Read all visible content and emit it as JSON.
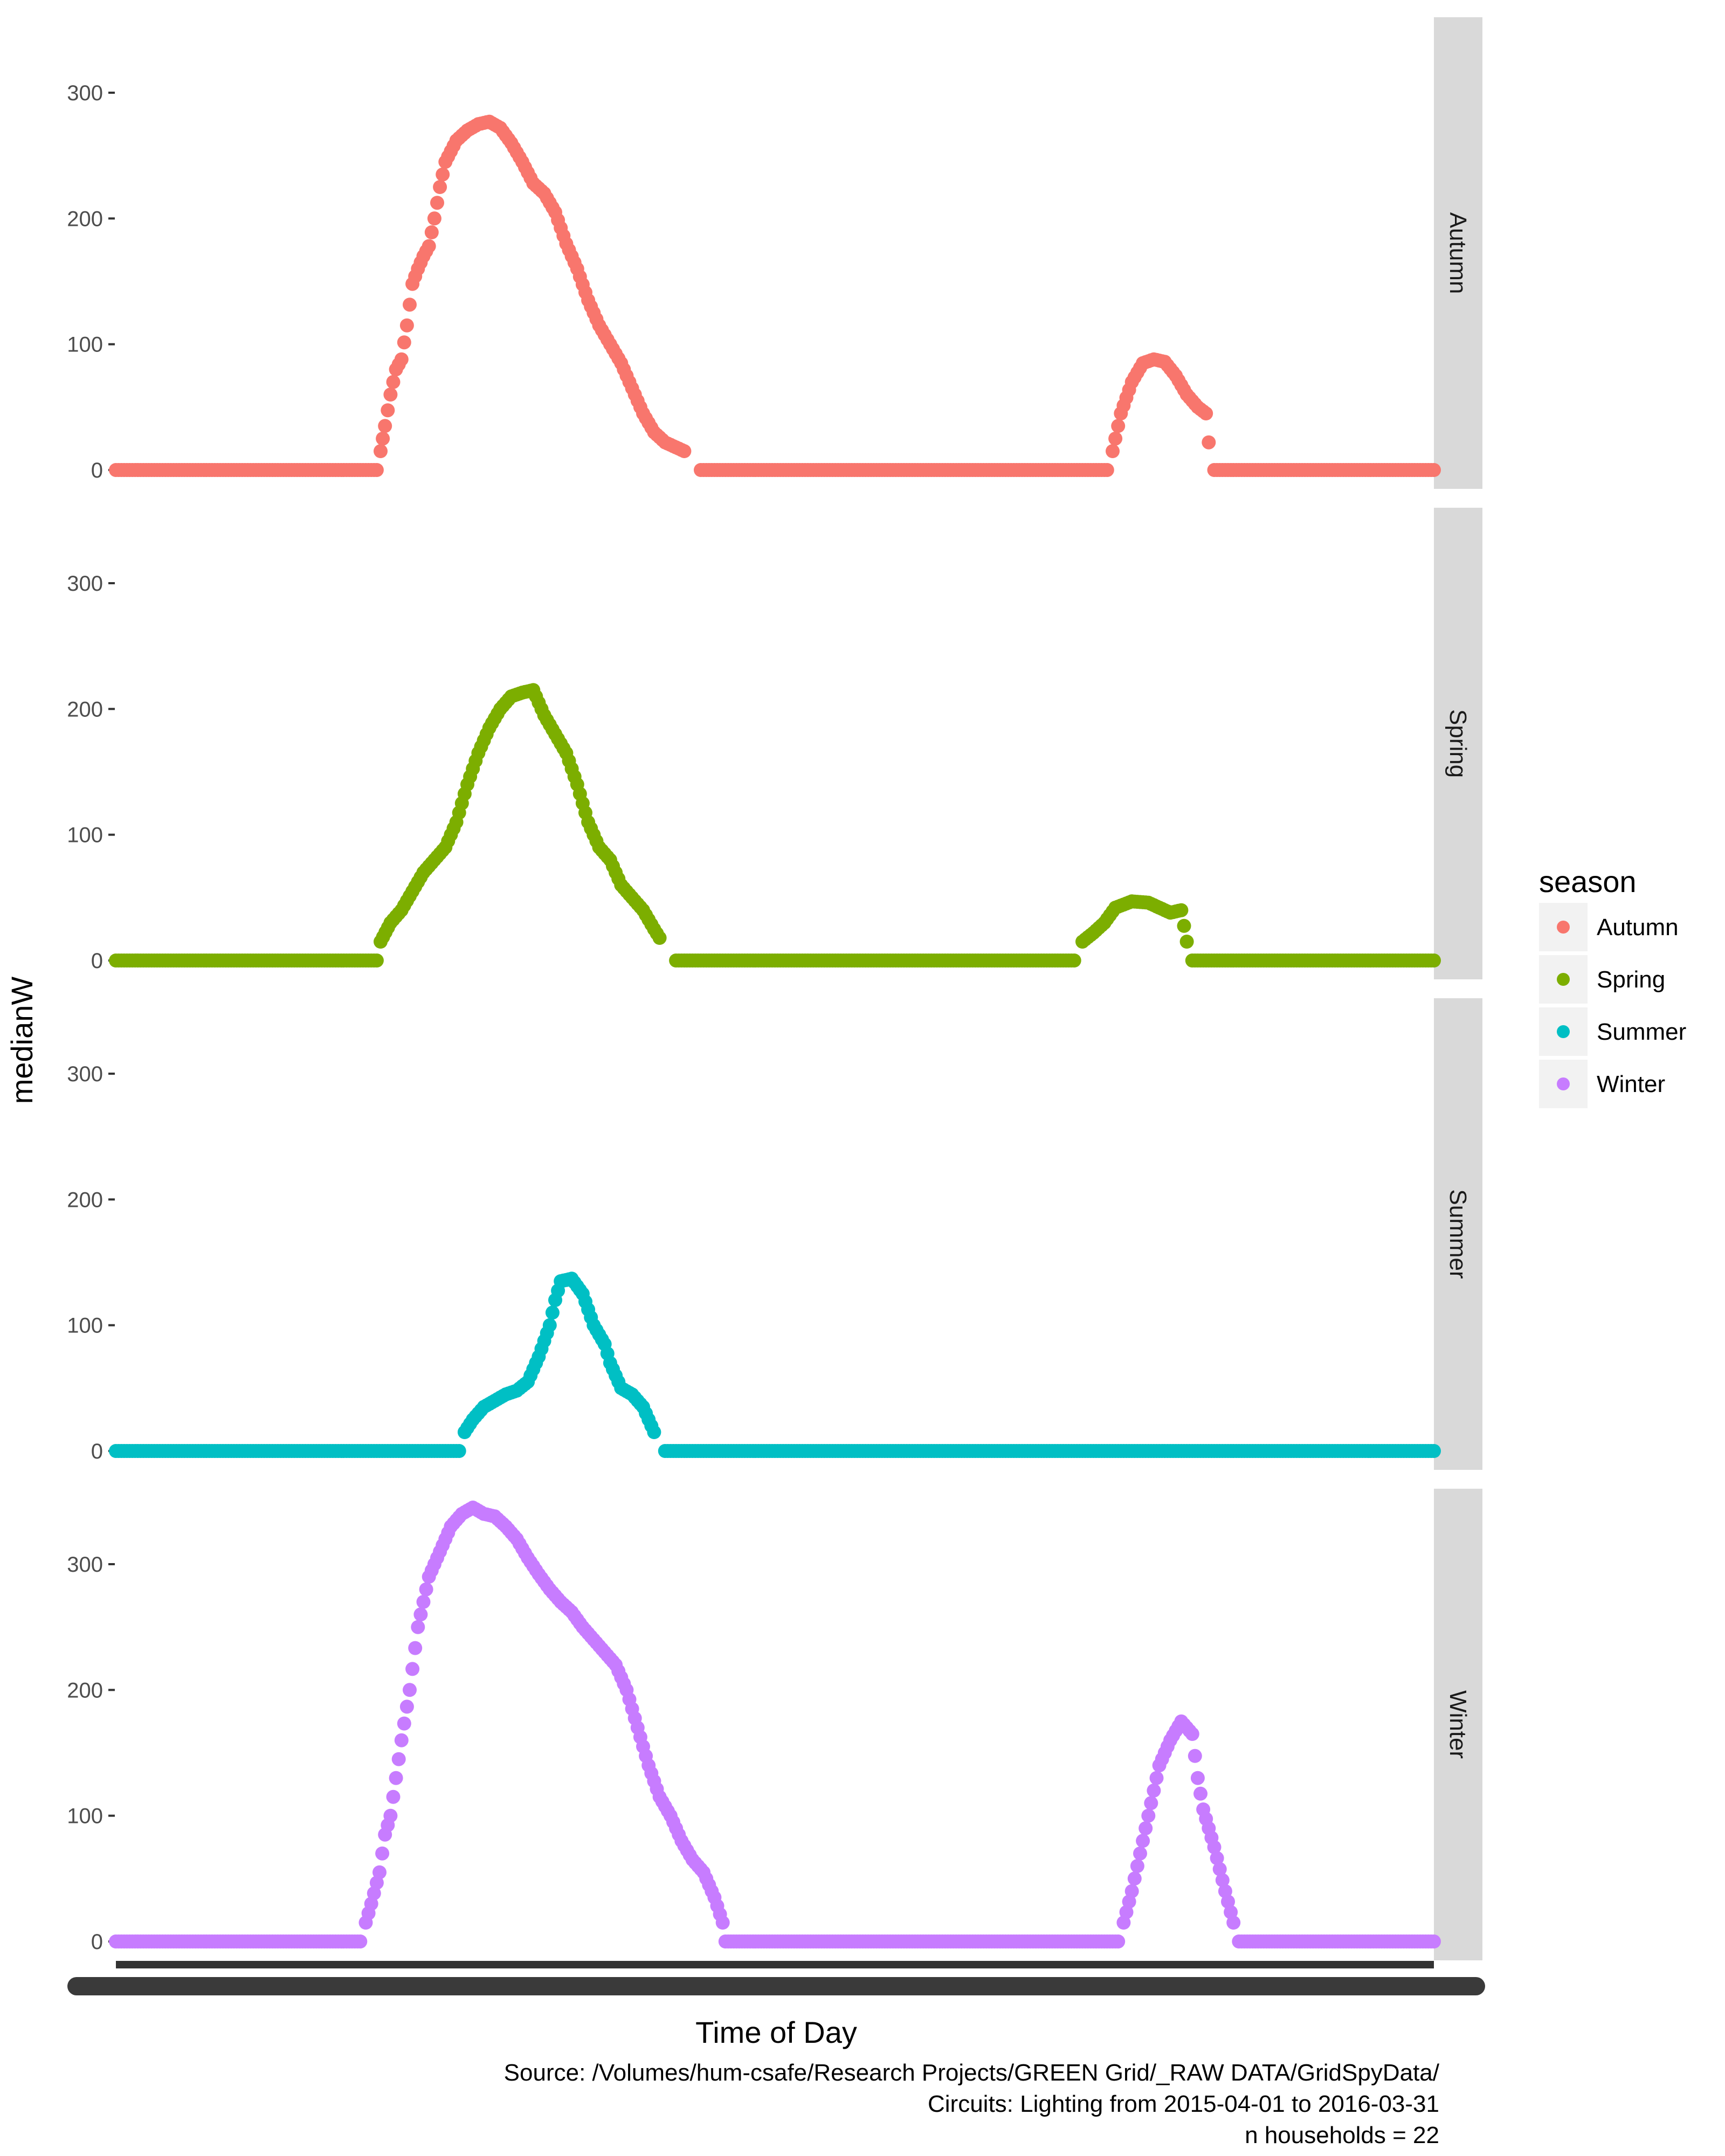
{
  "chart_data": {
    "type": "scatter",
    "xlabel": "Time of Day",
    "ylabel": "medianW",
    "ylim": [
      -15,
      360
    ],
    "yticks": [
      0,
      100,
      200,
      300
    ],
    "x_range_hours": [
      0,
      24
    ],
    "legend": {
      "title": "season",
      "placement": "right",
      "entries": [
        "Autumn",
        "Spring",
        "Summer",
        "Winter"
      ]
    },
    "caption": [
      "Source: /Volumes/hum-csafe/Research Projects/GREEN Grid/_RAW DATA/GridSpyData/",
      "Circuits: Lighting from 2015-04-01 to 2016-03-31",
      "n households = 22"
    ],
    "colors": {
      "Autumn": "#F8766D",
      "Spring": "#7CAE00",
      "Summer": "#00BFC4",
      "Winter": "#C77CFF"
    },
    "series": [
      {
        "name": "Autumn",
        "points": [
          [
            0,
            0
          ],
          [
            4.8,
            0
          ],
          [
            4.82,
            15
          ],
          [
            4.9,
            35
          ],
          [
            5.0,
            60
          ],
          [
            5.1,
            80
          ],
          [
            5.2,
            88
          ],
          [
            5.3,
            115
          ],
          [
            5.4,
            148
          ],
          [
            5.5,
            160
          ],
          [
            5.6,
            170
          ],
          [
            5.7,
            178
          ],
          [
            5.8,
            200
          ],
          [
            5.9,
            225
          ],
          [
            6.0,
            245
          ],
          [
            6.2,
            262
          ],
          [
            6.4,
            270
          ],
          [
            6.6,
            275
          ],
          [
            6.8,
            277
          ],
          [
            7.0,
            272
          ],
          [
            7.2,
            260
          ],
          [
            7.4,
            245
          ],
          [
            7.6,
            228
          ],
          [
            7.8,
            220
          ],
          [
            8.0,
            205
          ],
          [
            8.2,
            180
          ],
          [
            8.4,
            160
          ],
          [
            8.6,
            135
          ],
          [
            8.8,
            115
          ],
          [
            9.0,
            100
          ],
          [
            9.2,
            85
          ],
          [
            9.4,
            65
          ],
          [
            9.6,
            45
          ],
          [
            9.8,
            30
          ],
          [
            10.0,
            22
          ],
          [
            10.2,
            18
          ],
          [
            10.35,
            15
          ],
          [
            10.65,
            0
          ],
          [
            18.1,
            0
          ],
          [
            18.15,
            15
          ],
          [
            18.3,
            45
          ],
          [
            18.5,
            70
          ],
          [
            18.7,
            85
          ],
          [
            18.9,
            88
          ],
          [
            19.1,
            86
          ],
          [
            19.3,
            75
          ],
          [
            19.5,
            60
          ],
          [
            19.7,
            50
          ],
          [
            19.85,
            45
          ],
          [
            19.9,
            22
          ],
          [
            20.0,
            0
          ],
          [
            24,
            0
          ]
        ]
      },
      {
        "name": "Spring",
        "points": [
          [
            0,
            0
          ],
          [
            4.8,
            0
          ],
          [
            4.82,
            15
          ],
          [
            5.0,
            30
          ],
          [
            5.2,
            40
          ],
          [
            5.4,
            55
          ],
          [
            5.6,
            70
          ],
          [
            5.8,
            80
          ],
          [
            6.0,
            90
          ],
          [
            6.2,
            110
          ],
          [
            6.4,
            140
          ],
          [
            6.6,
            165
          ],
          [
            6.8,
            185
          ],
          [
            7.0,
            200
          ],
          [
            7.2,
            210
          ],
          [
            7.4,
            213
          ],
          [
            7.6,
            215
          ],
          [
            7.8,
            195
          ],
          [
            8.0,
            180
          ],
          [
            8.2,
            165
          ],
          [
            8.4,
            140
          ],
          [
            8.6,
            110
          ],
          [
            8.8,
            90
          ],
          [
            9.0,
            80
          ],
          [
            9.2,
            60
          ],
          [
            9.4,
            50
          ],
          [
            9.6,
            40
          ],
          [
            9.8,
            25
          ],
          [
            9.9,
            18
          ],
          [
            10.2,
            0
          ],
          [
            17.5,
            0
          ],
          [
            17.6,
            15
          ],
          [
            17.8,
            22
          ],
          [
            18.0,
            30
          ],
          [
            18.2,
            42
          ],
          [
            18.5,
            47
          ],
          [
            18.8,
            46
          ],
          [
            19.0,
            42
          ],
          [
            19.2,
            38
          ],
          [
            19.4,
            40
          ],
          [
            19.5,
            15
          ],
          [
            19.6,
            0
          ],
          [
            24,
            0
          ]
        ]
      },
      {
        "name": "Summer",
        "points": [
          [
            0,
            0
          ],
          [
            6.3,
            0
          ],
          [
            6.35,
            15
          ],
          [
            6.5,
            25
          ],
          [
            6.7,
            35
          ],
          [
            6.9,
            40
          ],
          [
            7.1,
            45
          ],
          [
            7.3,
            48
          ],
          [
            7.5,
            55
          ],
          [
            7.7,
            75
          ],
          [
            7.9,
            100
          ],
          [
            8.0,
            120
          ],
          [
            8.1,
            135
          ],
          [
            8.3,
            137
          ],
          [
            8.5,
            125
          ],
          [
            8.7,
            100
          ],
          [
            8.9,
            85
          ],
          [
            9.0,
            70
          ],
          [
            9.2,
            50
          ],
          [
            9.4,
            45
          ],
          [
            9.6,
            35
          ],
          [
            9.8,
            15
          ],
          [
            10.0,
            0
          ],
          [
            24,
            0
          ]
        ]
      },
      {
        "name": "Winter",
        "points": [
          [
            0,
            0
          ],
          [
            4.5,
            0
          ],
          [
            4.55,
            15
          ],
          [
            4.65,
            30
          ],
          [
            4.8,
            55
          ],
          [
            4.9,
            85
          ],
          [
            5.0,
            100
          ],
          [
            5.1,
            130
          ],
          [
            5.2,
            160
          ],
          [
            5.35,
            200
          ],
          [
            5.5,
            250
          ],
          [
            5.7,
            290
          ],
          [
            5.9,
            310
          ],
          [
            6.1,
            330
          ],
          [
            6.3,
            340
          ],
          [
            6.5,
            345
          ],
          [
            6.7,
            340
          ],
          [
            6.9,
            338
          ],
          [
            7.1,
            330
          ],
          [
            7.3,
            320
          ],
          [
            7.5,
            305
          ],
          [
            7.7,
            292
          ],
          [
            7.9,
            280
          ],
          [
            8.1,
            270
          ],
          [
            8.3,
            262
          ],
          [
            8.5,
            250
          ],
          [
            8.7,
            240
          ],
          [
            8.9,
            230
          ],
          [
            9.1,
            220
          ],
          [
            9.3,
            200
          ],
          [
            9.5,
            170
          ],
          [
            9.7,
            140
          ],
          [
            9.9,
            115
          ],
          [
            10.1,
            100
          ],
          [
            10.3,
            80
          ],
          [
            10.5,
            65
          ],
          [
            10.7,
            55
          ],
          [
            10.9,
            35
          ],
          [
            11.05,
            15
          ],
          [
            11.1,
            0
          ],
          [
            18.3,
            0
          ],
          [
            18.35,
            15
          ],
          [
            18.5,
            40
          ],
          [
            18.6,
            60
          ],
          [
            18.8,
            100
          ],
          [
            19.0,
            140
          ],
          [
            19.2,
            160
          ],
          [
            19.4,
            175
          ],
          [
            19.6,
            165
          ],
          [
            19.7,
            130
          ],
          [
            19.8,
            105
          ],
          [
            20.0,
            75
          ],
          [
            20.2,
            40
          ],
          [
            20.35,
            15
          ],
          [
            20.45,
            0
          ],
          [
            24,
            0
          ]
        ]
      }
    ]
  }
}
